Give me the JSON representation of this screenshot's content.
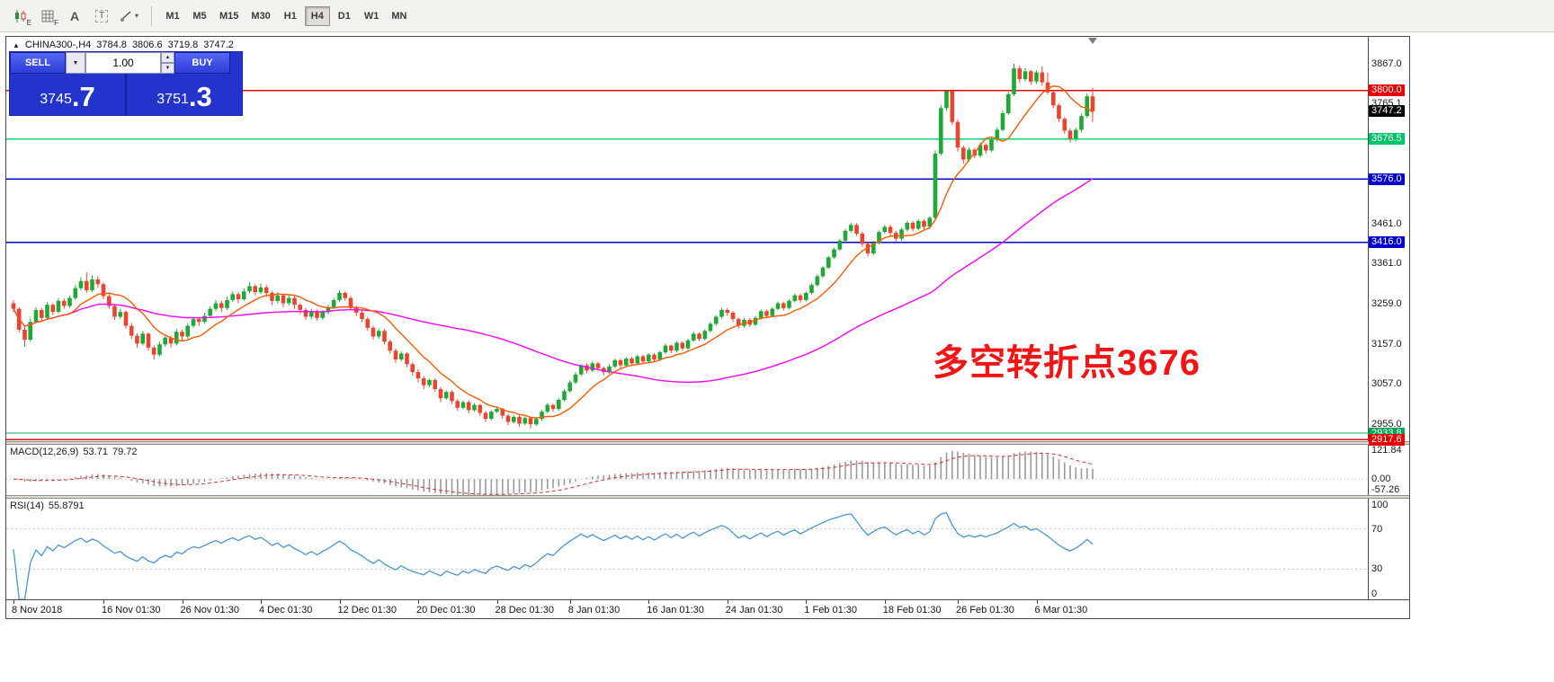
{
  "toolbar": {
    "tool_e_label": "E",
    "tool_f_label": "F",
    "tool_a_label": "A",
    "tool_t_label": "T",
    "timeframes": [
      "M1",
      "M5",
      "M15",
      "M30",
      "H1",
      "H4",
      "D1",
      "W1",
      "MN"
    ],
    "active_timeframe": "H4"
  },
  "header": {
    "marker": "▲",
    "symbol": "CHINA300-,H4",
    "open": "3784.8",
    "high": "3806.6",
    "low": "3719.8",
    "close": "3747.2"
  },
  "trade": {
    "sell": "SELL",
    "buy": "BUY",
    "volume": "1.00",
    "bid_main": "3745",
    "bid_big": ".7",
    "ask_main": "3751",
    "ask_big": ".3"
  },
  "annotation": {
    "text": "多空转折点3676",
    "color": "#f41414"
  },
  "price_axis": {
    "labels": [
      {
        "text": "3867.0",
        "value": 3867.0,
        "type": "tick"
      },
      {
        "text": "3800.0",
        "value": 3800.0,
        "type": "badge",
        "color": "#e80000"
      },
      {
        "text": "3765.1",
        "value": 3765.1,
        "type": "tick"
      },
      {
        "text": "3747.2",
        "value": 3747.2,
        "type": "badge",
        "color": "#000000"
      },
      {
        "text": "3676.5",
        "value": 3676.5,
        "type": "badge",
        "color": "#00c268"
      },
      {
        "text": "3576.0",
        "value": 3576.0,
        "type": "badge",
        "color": "#0000cc"
      },
      {
        "text": "3461.0",
        "value": 3461.0,
        "type": "tick"
      },
      {
        "text": "3416.0",
        "value": 3416.0,
        "type": "badge",
        "color": "#0000cc"
      },
      {
        "text": "3361.0",
        "value": 3361.0,
        "type": "tick"
      },
      {
        "text": "3259.0",
        "value": 3259.0,
        "type": "tick"
      },
      {
        "text": "3157.0",
        "value": 3157.0,
        "type": "tick"
      },
      {
        "text": "3057.0",
        "value": 3057.0,
        "type": "tick"
      },
      {
        "text": "2955.0",
        "value": 2955.0,
        "type": "tick"
      },
      {
        "text": "2933.8",
        "value": 2933.8,
        "type": "badge",
        "color": "#00a455"
      },
      {
        "text": "2917.6",
        "value": 2917.6,
        "type": "badge",
        "color": "#e80000"
      }
    ]
  },
  "hlines": [
    {
      "value": 3800.0,
      "color": "#e80000",
      "width": 1.5
    },
    {
      "value": 3676.5,
      "color": "#00d873",
      "width": 1.5
    },
    {
      "value": 3576.0,
      "color": "#0000cc",
      "width": 1.5
    },
    {
      "value": 3416.0,
      "color": "#0000cc",
      "width": 1.5
    },
    {
      "value": 2933.8,
      "color": "#00b060",
      "width": 1.2
    },
    {
      "value": 2917.6,
      "color": "#e80000",
      "width": 1.2
    }
  ],
  "macd": {
    "label": "MACD(12,26,9)",
    "value_main": "53.71",
    "value_signal": "79.72",
    "range": [
      -57.26,
      121.84
    ],
    "axis": [
      {
        "text": "121.84",
        "value": 121.84
      },
      {
        "text": "0.00",
        "value": 0
      },
      {
        "text": "-57.26",
        "value": -57.26
      }
    ]
  },
  "rsi": {
    "label": "RSI(14)",
    "value": "55.8791",
    "period": 14,
    "levels": [
      70,
      30
    ],
    "axis": [
      {
        "text": "100",
        "value": 100
      },
      {
        "text": "70",
        "value": 70
      },
      {
        "text": "30",
        "value": 30
      },
      {
        "text": "0",
        "value": 0
      }
    ]
  },
  "time_axis": [
    {
      "label": "8 Nov 2018",
      "i": 0
    },
    {
      "label": "16 Nov 01:30",
      "i": 16
    },
    {
      "label": "26 Nov 01:30",
      "i": 30
    },
    {
      "label": "4 Dec 01:30",
      "i": 44
    },
    {
      "label": "12 Dec 01:30",
      "i": 58
    },
    {
      "label": "20 Dec 01:30",
      "i": 72
    },
    {
      "label": "28 Dec 01:30",
      "i": 86
    },
    {
      "label": "8 Jan 01:30",
      "i": 99
    },
    {
      "label": "16 Jan 01:30",
      "i": 113
    },
    {
      "label": "24 Jan 01:30",
      "i": 127
    },
    {
      "label": "1 Feb 01:30",
      "i": 141
    },
    {
      "label": "18 Feb 01:30",
      "i": 155
    },
    {
      "label": "26 Feb 01:30",
      "i": 168
    },
    {
      "label": "6 Mar 01:30",
      "i": 182
    }
  ],
  "chart_data": {
    "type": "candlestick",
    "symbol": "CHINA300-",
    "timeframe": "H4",
    "ylim": [
      2913.5,
      3935
    ],
    "up_color": "#1fa837",
    "down_color": "#e8442f",
    "ma_fast": {
      "period": 10,
      "color": "#ff5a00"
    },
    "ma_slow": {
      "period": 55,
      "color": "#ff00ff"
    },
    "candles": [
      [
        3262,
        3270,
        3240,
        3248
      ],
      [
        3248,
        3252,
        3188,
        3195
      ],
      [
        3195,
        3205,
        3152,
        3170
      ],
      [
        3170,
        3222,
        3165,
        3215
      ],
      [
        3215,
        3252,
        3210,
        3245
      ],
      [
        3245,
        3250,
        3218,
        3225
      ],
      [
        3225,
        3265,
        3222,
        3258
      ],
      [
        3258,
        3262,
        3232,
        3240
      ],
      [
        3240,
        3275,
        3236,
        3268
      ],
      [
        3268,
        3274,
        3248,
        3255
      ],
      [
        3255,
        3282,
        3250,
        3275
      ],
      [
        3275,
        3308,
        3270,
        3300
      ],
      [
        3300,
        3328,
        3295,
        3318
      ],
      [
        3318,
        3340,
        3288,
        3295
      ],
      [
        3295,
        3332,
        3290,
        3322
      ],
      [
        3322,
        3330,
        3302,
        3310
      ],
      [
        3310,
        3315,
        3272,
        3280
      ],
      [
        3280,
        3288,
        3248,
        3255
      ],
      [
        3255,
        3260,
        3220,
        3228
      ],
      [
        3228,
        3248,
        3222,
        3240
      ],
      [
        3240,
        3244,
        3198,
        3205
      ],
      [
        3205,
        3212,
        3172,
        3180
      ],
      [
        3180,
        3186,
        3150,
        3160
      ],
      [
        3160,
        3192,
        3155,
        3185
      ],
      [
        3185,
        3188,
        3142,
        3150
      ],
      [
        3150,
        3155,
        3120,
        3132
      ],
      [
        3132,
        3165,
        3128,
        3158
      ],
      [
        3158,
        3182,
        3152,
        3175
      ],
      [
        3175,
        3180,
        3150,
        3160
      ],
      [
        3160,
        3198,
        3155,
        3190
      ],
      [
        3190,
        3195,
        3168,
        3178
      ],
      [
        3178,
        3212,
        3172,
        3205
      ],
      [
        3205,
        3228,
        3200,
        3222
      ],
      [
        3222,
        3226,
        3205,
        3215
      ],
      [
        3215,
        3238,
        3210,
        3230
      ],
      [
        3230,
        3255,
        3225,
        3248
      ],
      [
        3248,
        3270,
        3242,
        3262
      ],
      [
        3262,
        3268,
        3240,
        3250
      ],
      [
        3250,
        3278,
        3245,
        3270
      ],
      [
        3270,
        3292,
        3265,
        3285
      ],
      [
        3285,
        3290,
        3262,
        3272
      ],
      [
        3272,
        3300,
        3268,
        3292
      ],
      [
        3292,
        3315,
        3288,
        3305
      ],
      [
        3305,
        3310,
        3282,
        3290
      ],
      [
        3290,
        3312,
        3285,
        3302
      ],
      [
        3302,
        3308,
        3278,
        3288
      ],
      [
        3288,
        3292,
        3258,
        3268
      ],
      [
        3268,
        3290,
        3262,
        3282
      ],
      [
        3282,
        3286,
        3252,
        3262
      ],
      [
        3262,
        3282,
        3256,
        3275
      ],
      [
        3275,
        3280,
        3248,
        3258
      ],
      [
        3258,
        3262,
        3235,
        3245
      ],
      [
        3245,
        3250,
        3220,
        3228
      ],
      [
        3228,
        3248,
        3222,
        3242
      ],
      [
        3242,
        3246,
        3218,
        3225
      ],
      [
        3225,
        3245,
        3220,
        3240
      ],
      [
        3240,
        3258,
        3235,
        3252
      ],
      [
        3252,
        3275,
        3248,
        3270
      ],
      [
        3270,
        3295,
        3265,
        3288
      ],
      [
        3288,
        3292,
        3268,
        3275
      ],
      [
        3275,
        3280,
        3245,
        3252
      ],
      [
        3252,
        3256,
        3230,
        3238
      ],
      [
        3238,
        3244,
        3215,
        3222
      ],
      [
        3222,
        3228,
        3192,
        3200
      ],
      [
        3200,
        3205,
        3170,
        3178
      ],
      [
        3178,
        3198,
        3172,
        3192
      ],
      [
        3192,
        3196,
        3158,
        3165
      ],
      [
        3165,
        3170,
        3135,
        3142
      ],
      [
        3142,
        3148,
        3112,
        3120
      ],
      [
        3120,
        3140,
        3115,
        3135
      ],
      [
        3135,
        3138,
        3100,
        3108
      ],
      [
        3108,
        3112,
        3080,
        3088
      ],
      [
        3088,
        3095,
        3062,
        3072
      ],
      [
        3072,
        3078,
        3045,
        3055
      ],
      [
        3055,
        3072,
        3050,
        3068
      ],
      [
        3068,
        3072,
        3038,
        3045
      ],
      [
        3045,
        3050,
        3012,
        3022
      ],
      [
        3022,
        3042,
        3018,
        3038
      ],
      [
        3038,
        3042,
        3008,
        3015
      ],
      [
        3015,
        3020,
        2990,
        2998
      ],
      [
        2998,
        3016,
        2994,
        3012
      ],
      [
        3012,
        3016,
        2984,
        2992
      ],
      [
        2992,
        3010,
        2988,
        3005
      ],
      [
        3005,
        3008,
        2978,
        2985
      ],
      [
        2985,
        2990,
        2962,
        2970
      ],
      [
        2970,
        2992,
        2966,
        2988
      ],
      [
        2988,
        3000,
        2985,
        2995
      ],
      [
        2995,
        2998,
        2970,
        2978
      ],
      [
        2978,
        2982,
        2954,
        2962
      ],
      [
        2962,
        2980,
        2958,
        2975
      ],
      [
        2975,
        2978,
        2950,
        2958
      ],
      [
        2958,
        2976,
        2954,
        2972
      ],
      [
        2972,
        2975,
        2946,
        2956
      ],
      [
        2956,
        2974,
        2952,
        2970
      ],
      [
        2970,
        2992,
        2965,
        2988
      ],
      [
        2988,
        3010,
        2984,
        3005
      ],
      [
        3005,
        3008,
        2988,
        2995
      ],
      [
        2995,
        3022,
        2990,
        3018
      ],
      [
        3018,
        3045,
        3014,
        3040
      ],
      [
        3040,
        3068,
        3036,
        3062
      ],
      [
        3062,
        3088,
        3058,
        3082
      ],
      [
        3082,
        3108,
        3078,
        3105
      ],
      [
        3105,
        3110,
        3085,
        3092
      ],
      [
        3092,
        3115,
        3088,
        3110
      ],
      [
        3110,
        3114,
        3092,
        3098
      ],
      [
        3098,
        3102,
        3080,
        3088
      ],
      [
        3088,
        3108,
        3084,
        3102
      ],
      [
        3102,
        3122,
        3098,
        3118
      ],
      [
        3118,
        3122,
        3098,
        3105
      ],
      [
        3105,
        3126,
        3100,
        3122
      ],
      [
        3122,
        3126,
        3104,
        3110
      ],
      [
        3110,
        3132,
        3106,
        3128
      ],
      [
        3128,
        3132,
        3110,
        3115
      ],
      [
        3115,
        3136,
        3110,
        3132
      ],
      [
        3132,
        3136,
        3114,
        3120
      ],
      [
        3120,
        3142,
        3116,
        3138
      ],
      [
        3138,
        3160,
        3134,
        3155
      ],
      [
        3155,
        3158,
        3136,
        3142
      ],
      [
        3142,
        3166,
        3138,
        3162
      ],
      [
        3162,
        3166,
        3142,
        3148
      ],
      [
        3148,
        3172,
        3144,
        3168
      ],
      [
        3168,
        3190,
        3164,
        3185
      ],
      [
        3185,
        3188,
        3166,
        3172
      ],
      [
        3172,
        3196,
        3168,
        3192
      ],
      [
        3192,
        3215,
        3188,
        3210
      ],
      [
        3210,
        3232,
        3205,
        3228
      ],
      [
        3228,
        3250,
        3224,
        3245
      ],
      [
        3245,
        3250,
        3230,
        3238
      ],
      [
        3238,
        3242,
        3215,
        3222
      ],
      [
        3222,
        3226,
        3198,
        3205
      ],
      [
        3205,
        3225,
        3200,
        3220
      ],
      [
        3220,
        3224,
        3202,
        3208
      ],
      [
        3208,
        3230,
        3204,
        3225
      ],
      [
        3225,
        3246,
        3220,
        3242
      ],
      [
        3242,
        3246,
        3224,
        3230
      ],
      [
        3230,
        3252,
        3226,
        3248
      ],
      [
        3248,
        3266,
        3244,
        3262
      ],
      [
        3262,
        3266,
        3244,
        3250
      ],
      [
        3250,
        3272,
        3246,
        3268
      ],
      [
        3268,
        3286,
        3264,
        3282
      ],
      [
        3282,
        3286,
        3264,
        3270
      ],
      [
        3270,
        3292,
        3266,
        3288
      ],
      [
        3288,
        3312,
        3284,
        3308
      ],
      [
        3308,
        3335,
        3304,
        3330
      ],
      [
        3330,
        3356,
        3326,
        3352
      ],
      [
        3352,
        3382,
        3348,
        3378
      ],
      [
        3378,
        3402,
        3374,
        3398
      ],
      [
        3398,
        3425,
        3394,
        3420
      ],
      [
        3420,
        3450,
        3416,
        3445
      ],
      [
        3445,
        3466,
        3440,
        3460
      ],
      [
        3460,
        3464,
        3432,
        3438
      ],
      [
        3438,
        3442,
        3405,
        3412
      ],
      [
        3412,
        3416,
        3380,
        3388
      ],
      [
        3388,
        3420,
        3384,
        3415
      ],
      [
        3415,
        3446,
        3410,
        3442
      ],
      [
        3442,
        3460,
        3438,
        3455
      ],
      [
        3455,
        3460,
        3432,
        3440
      ],
      [
        3440,
        3445,
        3418,
        3425
      ],
      [
        3425,
        3452,
        3420,
        3448
      ],
      [
        3448,
        3470,
        3444,
        3465
      ],
      [
        3465,
        3470,
        3444,
        3450
      ],
      [
        3450,
        3474,
        3446,
        3470
      ],
      [
        3470,
        3474,
        3448,
        3455
      ],
      [
        3455,
        3482,
        3450,
        3478
      ],
      [
        3478,
        3648,
        3474,
        3640
      ],
      [
        3640,
        3762,
        3635,
        3755
      ],
      [
        3755,
        3800,
        3748,
        3798
      ],
      [
        3798,
        3802,
        3712,
        3720
      ],
      [
        3720,
        3726,
        3645,
        3655
      ],
      [
        3655,
        3660,
        3615,
        3625
      ],
      [
        3625,
        3655,
        3620,
        3650
      ],
      [
        3650,
        3654,
        3628,
        3635
      ],
      [
        3635,
        3668,
        3630,
        3662
      ],
      [
        3662,
        3666,
        3640,
        3648
      ],
      [
        3648,
        3680,
        3644,
        3675
      ],
      [
        3675,
        3706,
        3670,
        3700
      ],
      [
        3700,
        3748,
        3696,
        3742
      ],
      [
        3742,
        3796,
        3738,
        3790
      ],
      [
        3790,
        3867,
        3785,
        3855
      ],
      [
        3855,
        3862,
        3818,
        3828
      ],
      [
        3828,
        3856,
        3822,
        3848
      ],
      [
        3848,
        3852,
        3814,
        3822
      ],
      [
        3822,
        3850,
        3816,
        3845
      ],
      [
        3845,
        3860,
        3812,
        3820
      ],
      [
        3820,
        3845,
        3790,
        3795
      ],
      [
        3795,
        3800,
        3755,
        3762
      ],
      [
        3762,
        3766,
        3720,
        3728
      ],
      [
        3728,
        3732,
        3690,
        3698
      ],
      [
        3698,
        3704,
        3668,
        3678
      ],
      [
        3678,
        3706,
        3672,
        3700
      ],
      [
        3700,
        3740,
        3694,
        3735
      ],
      [
        3735,
        3792,
        3730,
        3784.8
      ],
      [
        3784.8,
        3806.6,
        3719.8,
        3747.2
      ]
    ]
  }
}
